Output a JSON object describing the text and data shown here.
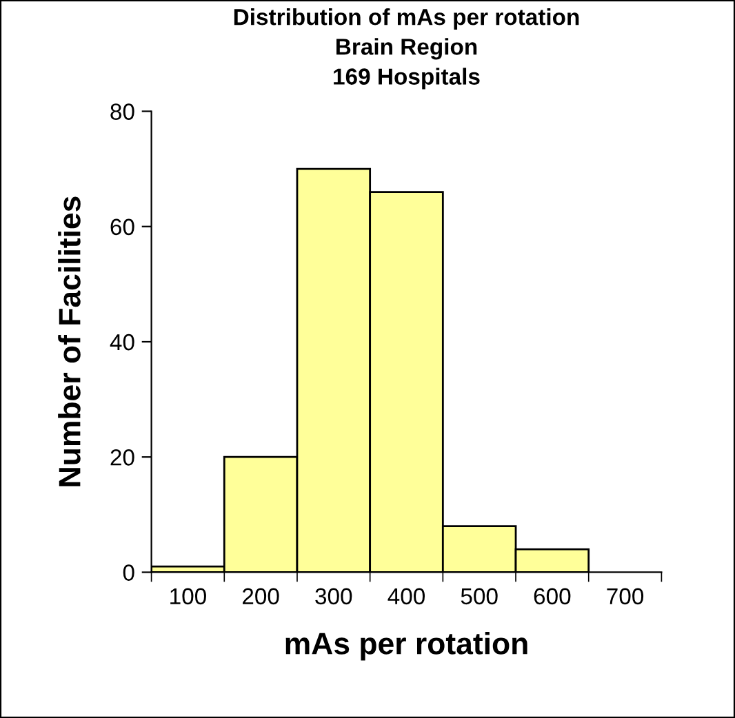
{
  "chart_data": {
    "type": "bar",
    "title": "Distribution of mAs per rotation\nBrain Region\n169 Hospitals",
    "categories": [
      "100",
      "200",
      "300",
      "400",
      "500",
      "600",
      "700"
    ],
    "values": [
      1,
      20,
      70,
      66,
      8,
      4,
      null
    ],
    "color": "#ffff99",
    "xlabel": "mAs per rotation",
    "ylabel": "Number of Facilities",
    "ylim": [
      0,
      80
    ],
    "yticks": [
      0,
      20,
      40,
      60,
      80
    ],
    "grid": false,
    "legend": false
  }
}
